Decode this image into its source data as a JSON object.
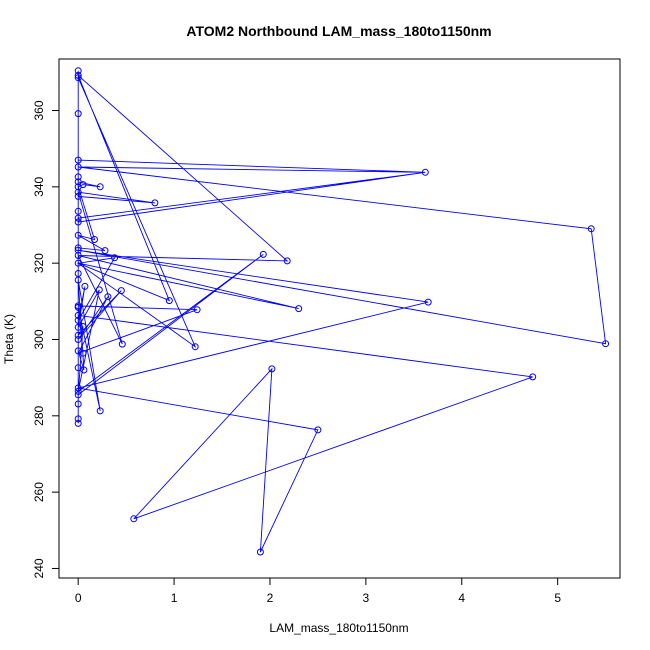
{
  "chart_data": {
    "type": "line",
    "title": "ATOM2 Northbound LAM_mass_180to1150nm",
    "xlabel": "LAM_mass_180to1150nm",
    "ylabel": "Theta (K)",
    "xlim": [
      -0.2,
      5.65
    ],
    "ylim": [
      237.5,
      373.5
    ],
    "x_ticks": [
      0,
      1,
      2,
      3,
      4,
      5
    ],
    "y_ticks": [
      240,
      260,
      280,
      300,
      320,
      340,
      360
    ],
    "grid": false,
    "legend": "none",
    "markers": "open-circle",
    "series_color": "#0000ff",
    "series": [
      {
        "points": [
          [
            0.0,
            370.4
          ],
          [
            0.0,
            369.2
          ],
          [
            0.0,
            368.6
          ],
          [
            0.0,
            359.2
          ],
          [
            0.0,
            347.0
          ],
          [
            0.0,
            345.2
          ],
          [
            3.62,
            343.8
          ],
          [
            0.0,
            342.6
          ],
          [
            0.0,
            341.3
          ],
          [
            0.05,
            340.6
          ],
          [
            0.0,
            340.0
          ],
          [
            0.23,
            340.0
          ],
          [
            0.0,
            338.6
          ],
          [
            0.0,
            337.5
          ],
          [
            0.8,
            335.8
          ],
          [
            0.0,
            333.6
          ],
          [
            0.0,
            331.8
          ],
          [
            0.0,
            330.8
          ],
          [
            5.35,
            329.0
          ],
          [
            5.5,
            298.9
          ],
          [
            0.0,
            327.3
          ],
          [
            0.17,
            326.2
          ],
          [
            0.0,
            324.0
          ],
          [
            0.0,
            323.4
          ],
          [
            0.28,
            323.3
          ],
          [
            1.93,
            322.3
          ],
          [
            0.0,
            322.0
          ],
          [
            0.38,
            321.4
          ],
          [
            2.18,
            320.6
          ],
          [
            0.0,
            320.0
          ],
          [
            0.0,
            317.3
          ],
          [
            0.0,
            315.6
          ],
          [
            0.07,
            313.9
          ],
          [
            0.22,
            313.0
          ],
          [
            0.45,
            312.8
          ],
          [
            0.31,
            311.2
          ],
          [
            0.95,
            310.2
          ],
          [
            3.65,
            309.8
          ],
          [
            0.0,
            308.8
          ],
          [
            0.0,
            308.4
          ],
          [
            2.3,
            308.1
          ],
          [
            1.24,
            307.8
          ],
          [
            0.0,
            306.3
          ],
          [
            0.0,
            305.0
          ],
          [
            0.0,
            303.2
          ],
          [
            0.05,
            303.4
          ],
          [
            0.0,
            301.1
          ],
          [
            0.0,
            300.0
          ],
          [
            0.46,
            298.8
          ],
          [
            1.22,
            298.1
          ],
          [
            0.0,
            297.0
          ],
          [
            0.05,
            296.4
          ],
          [
            0.0,
            292.6
          ],
          [
            2.02,
            292.3
          ],
          [
            0.06,
            292.0
          ],
          [
            4.74,
            290.2
          ],
          [
            0.0,
            287.3
          ],
          [
            0.0,
            286.4
          ],
          [
            0.0,
            285.5
          ],
          [
            0.0,
            283.1
          ],
          [
            0.23,
            281.3
          ],
          [
            0.0,
            279.2
          ],
          [
            0.0,
            278.0
          ],
          [
            2.5,
            276.3
          ],
          [
            0.58,
            253.0
          ],
          [
            1.9,
            244.3
          ]
        ]
      }
    ],
    "path_sequence": [
      [
        0.0,
        370.4
      ],
      [
        0.0,
        359.2
      ],
      [
        0.0,
        347.0
      ],
      [
        3.62,
        343.8
      ],
      [
        0.0,
        345.2
      ],
      [
        5.35,
        329.0
      ],
      [
        5.5,
        298.9
      ],
      [
        0.0,
        323.4
      ],
      [
        3.65,
        309.8
      ],
      [
        0.0,
        287.3
      ],
      [
        0.0,
        317.3
      ],
      [
        0.0,
        368.6
      ],
      [
        1.22,
        298.1
      ],
      [
        0.0,
        320.0
      ],
      [
        2.3,
        308.1
      ],
      [
        0.0,
        322.0
      ],
      [
        0.46,
        298.8
      ],
      [
        0.0,
        338.6
      ],
      [
        0.8,
        335.8
      ],
      [
        0.0,
        337.5
      ],
      [
        0.0,
        331.8
      ],
      [
        3.62,
        343.8
      ],
      [
        0.0,
        330.8
      ],
      [
        0.0,
        324.0
      ],
      [
        0.28,
        323.3
      ],
      [
        0.0,
        327.3
      ],
      [
        0.17,
        326.2
      ],
      [
        0.0,
        340.0
      ],
      [
        0.05,
        340.6
      ],
      [
        0.23,
        340.0
      ],
      [
        0.0,
        341.3
      ],
      [
        0.0,
        342.6
      ],
      [
        0.0,
        333.6
      ],
      [
        0.0,
        322.0
      ],
      [
        2.18,
        320.6
      ],
      [
        0.0,
        369.2
      ],
      [
        0.95,
        310.2
      ],
      [
        0.0,
        320.0
      ],
      [
        0.38,
        321.4
      ],
      [
        0.0,
        305.0
      ],
      [
        0.07,
        313.9
      ],
      [
        0.0,
        303.2
      ],
      [
        0.22,
        313.0
      ],
      [
        0.0,
        286.4
      ],
      [
        1.93,
        322.3
      ],
      [
        0.0,
        285.5
      ],
      [
        0.05,
        303.4
      ],
      [
        0.0,
        301.1
      ],
      [
        0.45,
        312.8
      ],
      [
        0.0,
        300.0
      ],
      [
        0.31,
        311.2
      ],
      [
        0.0,
        296.4
      ],
      [
        1.24,
        307.8
      ],
      [
        0.0,
        308.8
      ],
      [
        0.0,
        308.4
      ],
      [
        0.23,
        281.3
      ],
      [
        0.0,
        315.6
      ],
      [
        0.06,
        292.0
      ],
      [
        0.0,
        297.0
      ],
      [
        0.0,
        292.6
      ],
      [
        0.0,
        283.1
      ],
      [
        0.0,
        279.2
      ],
      [
        0.0,
        278.0
      ],
      [
        0.0,
        287.3
      ],
      [
        2.5,
        276.3
      ],
      [
        1.9,
        244.3
      ],
      [
        2.02,
        292.3
      ],
      [
        0.58,
        253.0
      ],
      [
        4.74,
        290.2
      ],
      [
        0.0,
        306.3
      ],
      [
        0.0,
        323.4
      ]
    ]
  }
}
